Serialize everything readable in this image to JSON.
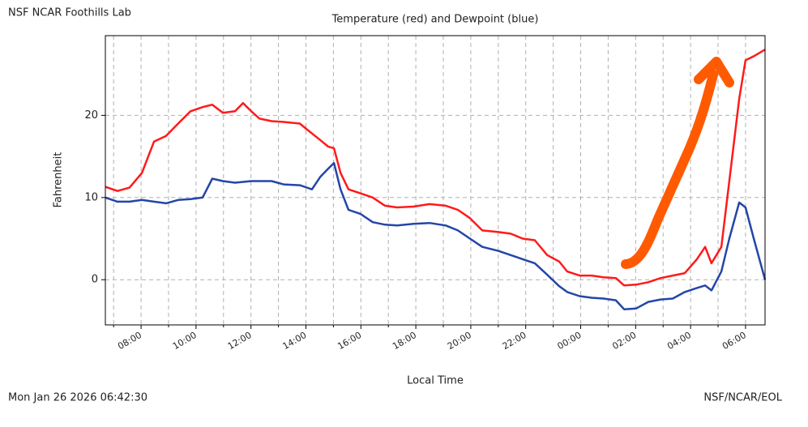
{
  "header": {
    "site": "NSF NCAR Foothills Lab"
  },
  "footer": {
    "timestamp": "Mon Jan 26 2026 06:42:30",
    "credit": "NSF/NCAR/EOL"
  },
  "chart_data": {
    "type": "line",
    "title": "Temperature (red) and Dewpoint (blue)",
    "x_label": "Local Time",
    "y_label": "Fahrenheit",
    "x": [
      6.7,
      7.14,
      7.58,
      8.03,
      8.47,
      8.91,
      9.35,
      9.8,
      10.24,
      10.59,
      10.98,
      11.42,
      11.71,
      12.01,
      12.31,
      12.75,
      13.19,
      13.78,
      14.22,
      14.52,
      14.81,
      15.02,
      15.26,
      15.55,
      15.99,
      16.43,
      16.88,
      17.32,
      17.91,
      18.5,
      19.09,
      19.53,
      19.97,
      20.42,
      21.01,
      21.45,
      21.89,
      22.33,
      22.78,
      23.22,
      23.51,
      23.96,
      24.4,
      24.84,
      25.28,
      25.58,
      26.02,
      26.46,
      26.91,
      27.35,
      27.79,
      28.23,
      28.53,
      28.76,
      29.12,
      29.41,
      29.77,
      30.0,
      30.3,
      30.71
    ],
    "series": [
      {
        "name": "Temperature",
        "color": "#ff1a1a",
        "values": [
          11.3,
          10.8,
          11.2,
          13,
          16.8,
          17.5,
          19,
          20.5,
          21,
          21.3,
          20.3,
          20.5,
          21.5,
          20.5,
          19.6,
          19.3,
          19.2,
          19,
          17.8,
          17,
          16.2,
          16,
          13,
          11,
          10.5,
          10,
          9,
          8.8,
          8.9,
          9.2,
          9,
          8.5,
          7.5,
          6,
          5.8,
          5.6,
          5,
          4.8,
          3,
          2.2,
          1,
          0.5,
          0.5,
          0.3,
          0.2,
          -0.7,
          -0.6,
          -0.3,
          0.2,
          0.5,
          0.8,
          2.5,
          4,
          2,
          4,
          12,
          22,
          26.7,
          27.2,
          28
        ]
      },
      {
        "name": "Dewpoint",
        "color": "#2346a8",
        "values": [
          10,
          9.5,
          9.5,
          9.7,
          9.5,
          9.3,
          9.7,
          9.8,
          10,
          12.3,
          12,
          11.8,
          11.9,
          12,
          12,
          12,
          11.6,
          11.5,
          11,
          12.5,
          13.5,
          14.2,
          11,
          8.5,
          8,
          7,
          6.7,
          6.6,
          6.8,
          6.9,
          6.6,
          6,
          5,
          4,
          3.5,
          3,
          2.5,
          2,
          0.6,
          -0.8,
          -1.5,
          -2,
          -2.2,
          -2.3,
          -2.5,
          -3.6,
          -3.5,
          -2.7,
          -2.4,
          -2.3,
          -1.5,
          -1,
          -0.7,
          -1.3,
          1,
          5,
          9.4,
          8.8,
          5,
          0
        ]
      }
    ],
    "xlim": [
      6.7,
      30.71
    ],
    "ylim": [
      -5.5,
      29.7
    ],
    "xticks": [
      {
        "value": 8,
        "label": "08:00"
      },
      {
        "value": 10,
        "label": "10:00"
      },
      {
        "value": 12,
        "label": "12:00"
      },
      {
        "value": 14,
        "label": "14:00"
      },
      {
        "value": 16,
        "label": "16:00"
      },
      {
        "value": 18,
        "label": "18:00"
      },
      {
        "value": 20,
        "label": "20:00"
      },
      {
        "value": 22,
        "label": "22:00"
      },
      {
        "value": 24,
        "label": "00:00"
      },
      {
        "value": 26,
        "label": "02:00"
      },
      {
        "value": 28,
        "label": "04:00"
      },
      {
        "value": 30,
        "label": "06:00"
      }
    ],
    "xminor_ticks": [
      7,
      9,
      11,
      13,
      15,
      17,
      19,
      21,
      23,
      25,
      27,
      29
    ],
    "yticks": [
      0,
      10,
      20
    ],
    "grid": true
  }
}
